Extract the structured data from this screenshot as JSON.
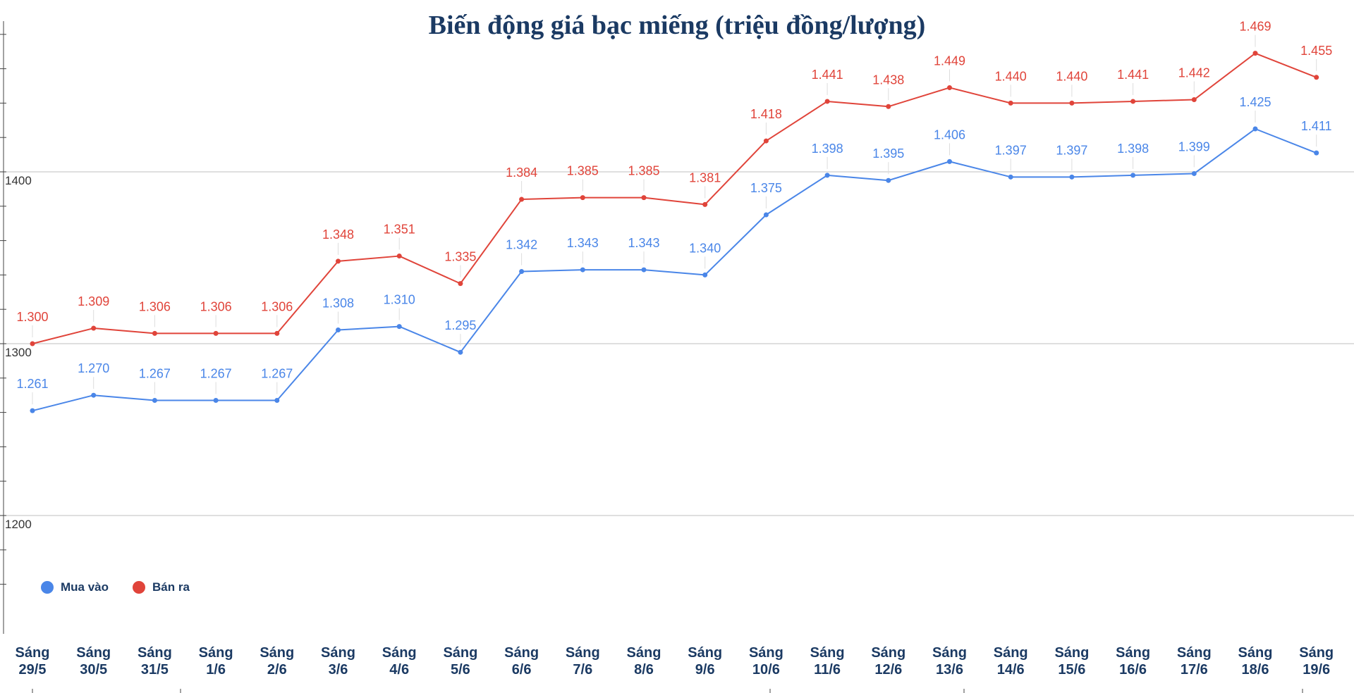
{
  "chart_data": {
    "type": "line",
    "title": "Biến động giá bạc miếng (triệu đồng/lượng)",
    "xlabel": "",
    "ylabel": "",
    "categories": [
      [
        "Sáng",
        "29/5"
      ],
      [
        "Sáng",
        "30/5"
      ],
      [
        "Sáng",
        "31/5"
      ],
      [
        "Sáng",
        "1/6"
      ],
      [
        "Sáng",
        "2/6"
      ],
      [
        "Sáng",
        "3/6"
      ],
      [
        "Sáng",
        "4/6"
      ],
      [
        "Sáng",
        "5/6"
      ],
      [
        "Sáng",
        "6/6"
      ],
      [
        "Sáng",
        "7/6"
      ],
      [
        "Sáng",
        "8/6"
      ],
      [
        "Sáng",
        "9/6"
      ],
      [
        "Sáng",
        "10/6"
      ],
      [
        "Sáng",
        "11/6"
      ],
      [
        "Sáng",
        "12/6"
      ],
      [
        "Sáng",
        "13/6"
      ],
      [
        "Sáng",
        "14/6"
      ],
      [
        "Sáng",
        "15/6"
      ],
      [
        "Sáng",
        "16/6"
      ],
      [
        "Sáng",
        "17/6"
      ],
      [
        "Sáng",
        "18/6"
      ],
      [
        "Sáng",
        "19/6"
      ]
    ],
    "series": [
      {
        "name": "Mua vào",
        "color": "#4a86e8",
        "values": [
          1261,
          1270,
          1267,
          1267,
          1267,
          1308,
          1310,
          1295,
          1342,
          1343,
          1343,
          1340,
          1375,
          1398,
          1395,
          1406,
          1397,
          1397,
          1398,
          1399,
          1425,
          1411
        ],
        "labels": [
          "1.261",
          "1.270",
          "1.267",
          "1.267",
          "1.267",
          "1.308",
          "1.310",
          "1.295",
          "1.342",
          "1.343",
          "1.343",
          "1.340",
          "1.375",
          "1.398",
          "1.395",
          "1.406",
          "1.397",
          "1.397",
          "1.398",
          "1.399",
          "1.425",
          "1.411"
        ]
      },
      {
        "name": "Bán ra",
        "color": "#e0443a",
        "values": [
          1300,
          1309,
          1306,
          1306,
          1306,
          1348,
          1351,
          1335,
          1384,
          1385,
          1385,
          1381,
          1418,
          1441,
          1438,
          1449,
          1440,
          1440,
          1441,
          1442,
          1469,
          1455
        ],
        "labels": [
          "1.300",
          "1.309",
          "1.306",
          "1.306",
          "1.306",
          "1.348",
          "1.351",
          "1.335",
          "1.384",
          "1.385",
          "1.385",
          "1.381",
          "1.418",
          "1.441",
          "1.438",
          "1.449",
          "1.440",
          "1.440",
          "1.441",
          "1.442",
          "1.469",
          "1.455"
        ]
      }
    ],
    "yticks": [
      1200,
      1300,
      1400
    ],
    "ylim": [
      1135,
      1500
    ],
    "grid": true,
    "legend_position": "bottom-left"
  }
}
